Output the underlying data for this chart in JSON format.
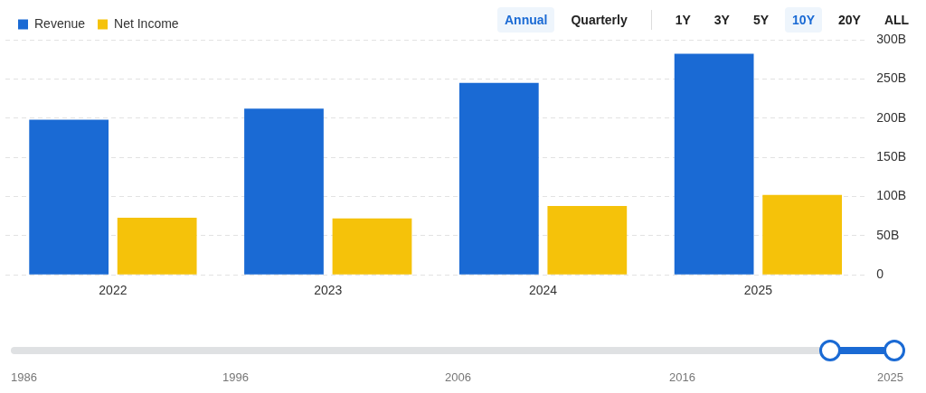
{
  "chart_data": {
    "type": "bar",
    "categories": [
      "2022",
      "2023",
      "2024",
      "2025"
    ],
    "series": [
      {
        "name": "Revenue",
        "color": "#1a6ad4",
        "values": [
          198,
          212,
          245,
          282
        ]
      },
      {
        "name": "Net Income",
        "color": "#f5c20a",
        "values": [
          73,
          72,
          88,
          102
        ]
      }
    ],
    "ylim": [
      0,
      300
    ],
    "yticks": [
      0,
      {
        "value": 50,
        "label": "50B"
      },
      {
        "value": 100,
        "label": "100B"
      },
      {
        "value": 150,
        "label": "150B"
      },
      {
        "value": 200,
        "label": "200B"
      },
      {
        "value": 250,
        "label": "250B"
      },
      {
        "value": 300,
        "label": "300B"
      }
    ],
    "grid": "y",
    "legend": "top left",
    "annotations": [
      "Annual",
      "Quarterly",
      "1Y",
      "3Y",
      "5Y",
      "10Y",
      "20Y",
      "ALL",
      "1986",
      "1996",
      "2006",
      "2016",
      "2025"
    ]
  }
}
